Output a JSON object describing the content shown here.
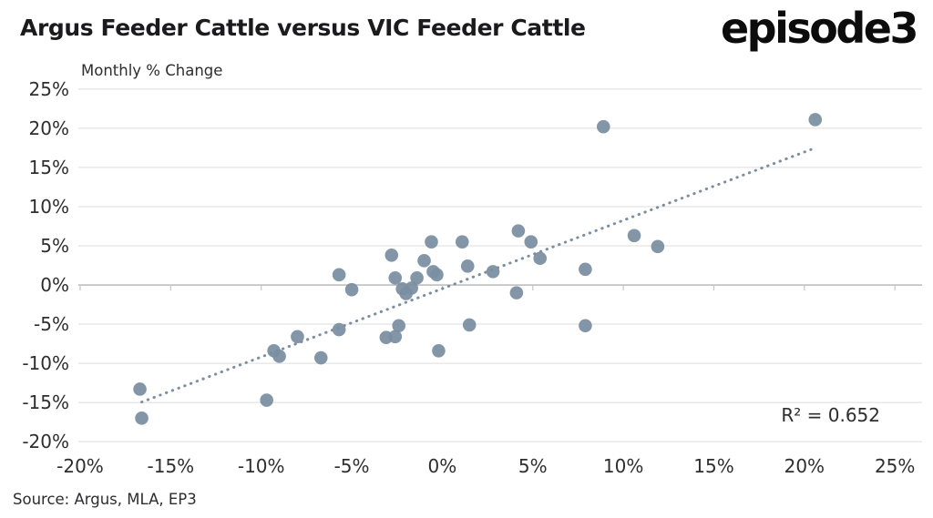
{
  "header": {
    "title": "Argus Feeder Cattle versus VIC Feeder Cattle",
    "logo_text": "episode3"
  },
  "chart_data": {
    "type": "scatter",
    "subtitle": "Monthly % Change",
    "r_squared_label": "R² = 0.652",
    "x_ticks": [
      -20,
      -15,
      -10,
      -5,
      0,
      5,
      10,
      15,
      20,
      25
    ],
    "y_ticks": [
      25,
      20,
      15,
      10,
      5,
      0,
      -5,
      -10,
      -15,
      -20
    ],
    "tick_suffix": "%",
    "xlim": [
      -20.1,
      26.5
    ],
    "ylim": [
      -20.1,
      25.1
    ],
    "grid": true,
    "points": [
      [
        -16.7,
        -13.3
      ],
      [
        -16.6,
        -17.0
      ],
      [
        -9.7,
        -14.7
      ],
      [
        -9.3,
        -8.4
      ],
      [
        -9.0,
        -9.1
      ],
      [
        -8.0,
        -6.6
      ],
      [
        -6.7,
        -9.3
      ],
      [
        -5.7,
        -5.7
      ],
      [
        -5.7,
        1.3
      ],
      [
        -5.0,
        -0.6
      ],
      [
        -3.1,
        -6.7
      ],
      [
        -2.8,
        3.8
      ],
      [
        -2.6,
        -6.6
      ],
      [
        -2.6,
        0.9
      ],
      [
        -2.4,
        -5.2
      ],
      [
        -2.2,
        -0.5
      ],
      [
        -2.0,
        -1.1
      ],
      [
        -1.7,
        -0.4
      ],
      [
        -1.4,
        0.9
      ],
      [
        -1.0,
        3.1
      ],
      [
        -0.6,
        5.5
      ],
      [
        -0.5,
        1.7
      ],
      [
        -0.3,
        1.3
      ],
      [
        -0.2,
        -8.4
      ],
      [
        1.1,
        5.5
      ],
      [
        1.4,
        2.4
      ],
      [
        1.5,
        -5.1
      ],
      [
        2.8,
        1.7
      ],
      [
        4.1,
        -1.0
      ],
      [
        4.2,
        6.9
      ],
      [
        4.9,
        5.5
      ],
      [
        5.4,
        3.4
      ],
      [
        7.9,
        2.0
      ],
      [
        7.9,
        -5.2
      ],
      [
        8.9,
        20.2
      ],
      [
        10.6,
        6.3
      ],
      [
        11.9,
        4.9
      ],
      [
        20.6,
        21.1
      ]
    ],
    "trendline": {
      "style": "dotted",
      "x_start": -16.6,
      "x_end": 20.6,
      "slope": 0.872,
      "intercept": -0.47
    },
    "colors": {
      "point": "#7A8EA0",
      "trend": "#7A8EA0",
      "grid": "#DDDDDD",
      "axis": "#B3B3B3",
      "tick": "#C6C6C6"
    }
  },
  "footer": {
    "source": "Source: Argus, MLA, EP3"
  }
}
